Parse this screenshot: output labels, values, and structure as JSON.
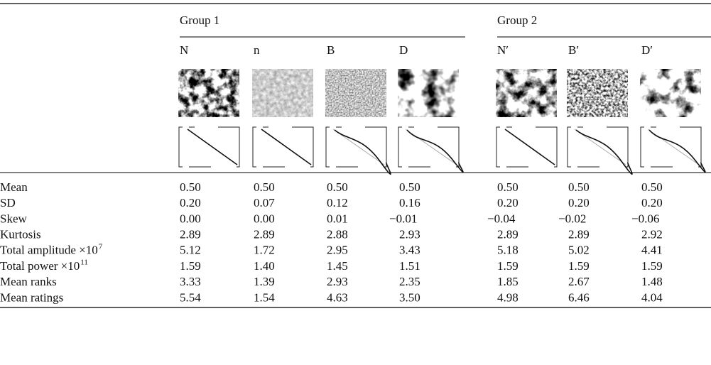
{
  "table": {
    "groups": [
      "Group 1",
      "Group 2"
    ],
    "columns": [
      "N",
      "n",
      "B",
      "D",
      "N′",
      "B′",
      "D′"
    ],
    "rows": [
      {
        "label": "Mean",
        "cells": [
          "0.50",
          "0.50",
          "0.50",
          "0.50",
          "0.50",
          "0.50",
          "0.50"
        ]
      },
      {
        "label": "SD",
        "cells": [
          "0.20",
          "0.07",
          "0.12",
          "0.16",
          "0.20",
          "0.20",
          "0.20"
        ]
      },
      {
        "label": "Skew",
        "cells": [
          "0.00",
          "0.00",
          "0.01",
          "−0.01",
          "−0.04",
          "−0.02",
          "−0.06"
        ]
      },
      {
        "label": "Kurtosis",
        "cells": [
          "2.89",
          "2.89",
          "2.88",
          "2.93",
          "2.89",
          "2.89",
          "2.92"
        ]
      },
      {
        "label": "Total amplitude ×10",
        "sup": "7",
        "cells": [
          "5.12",
          "1.72",
          "2.95",
          "3.43",
          "5.18",
          "5.02",
          "4.41"
        ]
      },
      {
        "label": "Total power ×10",
        "sup": "11",
        "cells": [
          "1.59",
          "1.40",
          "1.45",
          "1.51",
          "1.59",
          "1.59",
          "1.59"
        ]
      },
      {
        "label": "Mean ranks",
        "cells": [
          "3.33",
          "1.39",
          "2.93",
          "2.35",
          "1.85",
          "2.67",
          "1.48"
        ]
      },
      {
        "label": "Mean ratings",
        "cells": [
          "5.54",
          "1.54",
          "4.63",
          "3.50",
          "4.98",
          "6.46",
          "4.04"
        ]
      }
    ]
  }
}
